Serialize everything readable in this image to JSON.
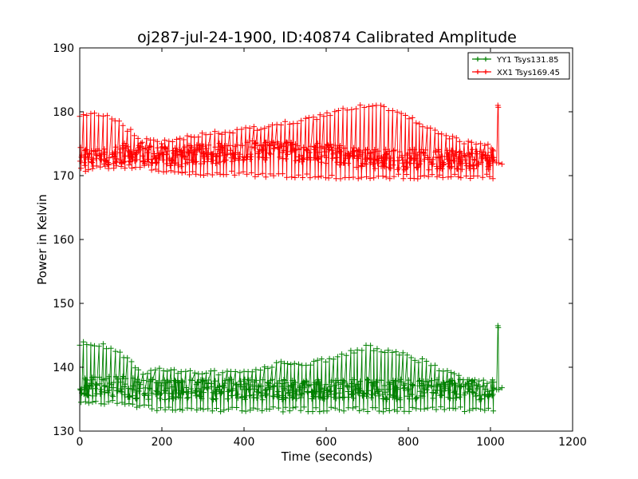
{
  "chart_data": {
    "type": "line",
    "title": "oj287-jul-24-1900, ID:40874 Calibrated Amplitude",
    "xlabel": "Time (seconds)",
    "ylabel": "Power in Kelvin",
    "xlim": [
      0,
      1200
    ],
    "ylim": [
      130,
      190
    ],
    "xticks": [
      0,
      200,
      400,
      600,
      800,
      1000,
      1200
    ],
    "yticks": [
      130,
      140,
      150,
      160,
      170,
      180,
      190
    ],
    "legend_position": "top-right",
    "marker": "+",
    "series": [
      {
        "name": "YY1 Tsys131.85",
        "color": "#008000",
        "envelope": {
          "x": [
            0,
            50,
            100,
            150,
            200,
            250,
            300,
            350,
            400,
            450,
            500,
            550,
            600,
            650,
            700,
            750,
            800,
            850,
            900,
            950,
            1000
          ],
          "high": [
            144,
            144,
            142.5,
            139.5,
            140,
            139.5,
            139.5,
            139.5,
            139.5,
            140.5,
            141,
            141,
            141.5,
            142.5,
            143.5,
            143,
            142,
            141,
            139.5,
            138.5,
            138
          ],
          "low": [
            134,
            134,
            134,
            133.5,
            133,
            133,
            133,
            133,
            133,
            133,
            133,
            133,
            133,
            133,
            133,
            133,
            133,
            133,
            133,
            133,
            133
          ],
          "mid": [
            137,
            137,
            137,
            136.5,
            136.5,
            136.5,
            136.5,
            136.5,
            136.5,
            136.5,
            136.5,
            136.5,
            136.5,
            136.5,
            136.5,
            136.5,
            136.5,
            136.5,
            136.5,
            136.5,
            136.5
          ]
        },
        "end_spike": {
          "x": 1018,
          "low": 136.5,
          "high": 146.5,
          "after": 136.8
        }
      },
      {
        "name": "XX1 Tsys169.45",
        "color": "#ff0000",
        "envelope": {
          "x": [
            0,
            50,
            100,
            150,
            200,
            250,
            300,
            350,
            400,
            450,
            500,
            550,
            600,
            650,
            700,
            750,
            800,
            850,
            900,
            950,
            1000
          ],
          "high": [
            180,
            180,
            178.5,
            176,
            175.5,
            176,
            177,
            177,
            177.5,
            178,
            178.5,
            179,
            180,
            181,
            181.5,
            181,
            179.5,
            178,
            176.5,
            175.5,
            175
          ],
          "low": [
            170.5,
            171,
            171,
            171,
            170.5,
            170,
            170,
            170,
            170,
            169.5,
            169.5,
            169.5,
            169.5,
            169.5,
            169.5,
            169.5,
            169.5,
            169.5,
            169.5,
            169.5,
            169.5
          ],
          "mid": [
            173,
            173,
            173.5,
            173.5,
            173,
            173,
            173.5,
            173.5,
            174,
            174,
            174,
            173.5,
            173.5,
            173,
            172.5,
            172.5,
            172.5,
            172.5,
            172.5,
            172.5,
            172.5
          ]
        },
        "end_spike": {
          "x": 1018,
          "low": 172,
          "high": 181,
          "after": 171.8
        }
      }
    ]
  }
}
